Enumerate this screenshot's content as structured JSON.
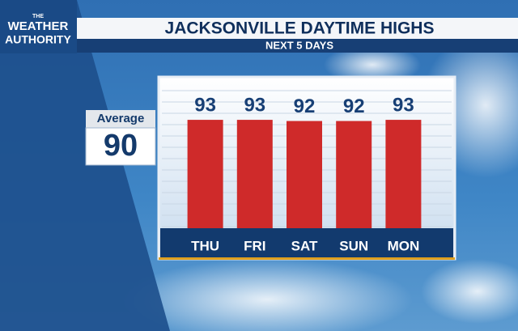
{
  "logo": {
    "top": "THE",
    "lines": [
      "WEATHER",
      "AUTHORITY"
    ]
  },
  "chart_data": {
    "type": "bar",
    "title": "JACKSONVILLE DAYTIME HIGHS",
    "subtitle": "NEXT 5 DAYS",
    "categories": [
      "THU",
      "FRI",
      "SAT",
      "SUN",
      "MON"
    ],
    "values": [
      93,
      93,
      92,
      92,
      93
    ],
    "color": "#cf2a2a",
    "average": {
      "label": "Average",
      "value": 90
    }
  }
}
